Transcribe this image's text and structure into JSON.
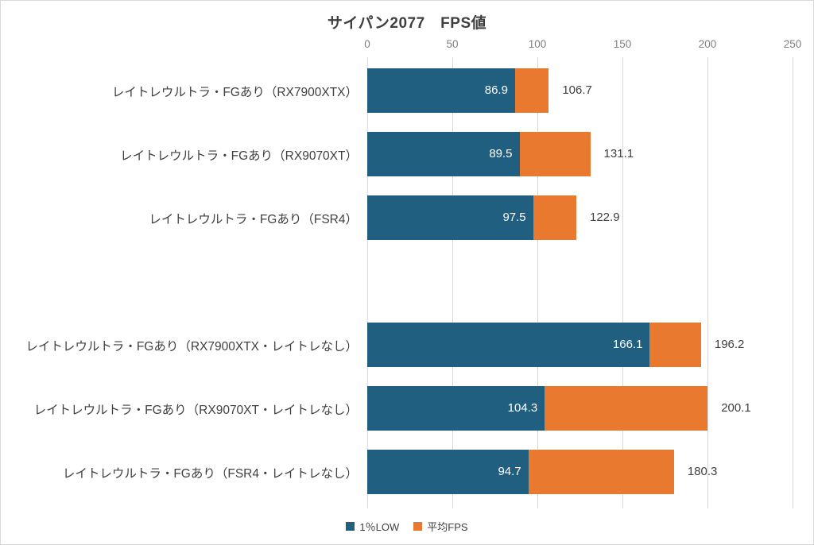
{
  "chart_data": {
    "type": "bar",
    "orientation": "horizontal",
    "title": "サイパン2077　FPS値",
    "categories": [
      "レイトレウルトラ・FGあり（RX7900XTX）",
      "レイトレウルトラ・FGあり（RX9070XT）",
      "レイトレウルトラ・FGあり（FSR4）",
      "レイトレウルトラ・FGあり（RX7900XTX・レイトレなし）",
      "レイトレウルトラ・FGあり（RX9070XT・レイトレなし）",
      "レイトレウルトラ・FGあり（FSR4・レイトレなし）"
    ],
    "series": [
      {
        "name": "1％LOW",
        "color": "#205f7f",
        "values": [
          86.9,
          89.5,
          97.5,
          166.1,
          104.3,
          94.7
        ]
      },
      {
        "name": "平均FPS",
        "color": "#e8792e",
        "values": [
          106.7,
          131.1,
          122.9,
          196.2,
          200.1,
          180.3
        ]
      }
    ],
    "x_axis": {
      "ticks": [
        0,
        50,
        100,
        150,
        200,
        250
      ],
      "min": 0,
      "max": 250,
      "position": "top"
    },
    "grid": "vertical",
    "legend_position": "bottom",
    "blank_row_after_index": 2,
    "bar_style": "overlapped",
    "colors": {
      "gridline": "#d9d9d9",
      "tick_text": "#7f7f7f",
      "label_text": "#404040",
      "inner_value_text": "#ffffff"
    }
  }
}
